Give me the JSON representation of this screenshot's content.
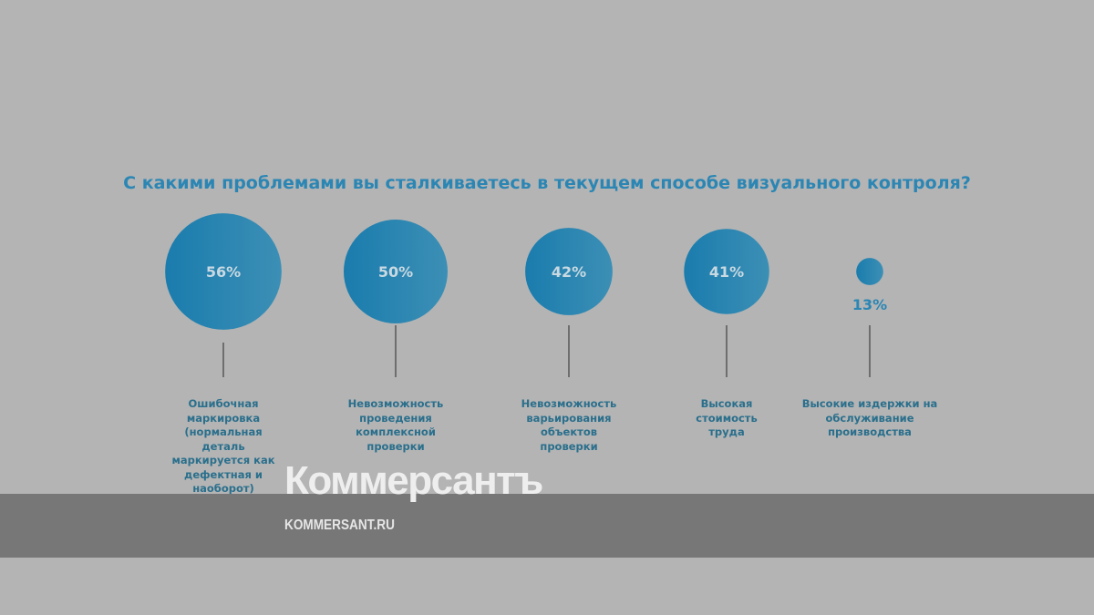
{
  "chart_data": {
    "type": "bubble",
    "title": "С какими проблемами вы сталкиваетесь в текущем способе визуального контроля?",
    "unit": "%",
    "categories": [
      "Ошибочная маркировка (нормальная деталь маркируется как дефектная и наоборот)",
      "Невозможность проведения комплексной проверки",
      "Невозможность варьирования объектов проверки",
      "Высокая стоимость труда",
      "Высокие издержки на обслуживание производства"
    ],
    "values": [
      56,
      50,
      42,
      41,
      13
    ],
    "data_labels": [
      "56%",
      "50%",
      "42%",
      "41%",
      "13%"
    ],
    "bubble_color": "#1f7fae"
  },
  "watermark": {
    "logo": "Коммерсантъ",
    "url": "KOMMERSANT.RU"
  }
}
